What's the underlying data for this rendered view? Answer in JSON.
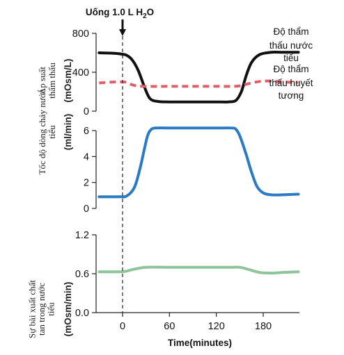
{
  "chart_data": {
    "annotation": {
      "prefix": "Uống 1.0 L H",
      "subscript": "2",
      "suffix": "O",
      "x": 0
    },
    "xlabel": "Time(minutes)",
    "xticks": [
      0,
      60,
      120,
      180
    ],
    "xlim": [
      -30,
      225
    ],
    "panels": [
      {
        "type": "line",
        "ylabel_unit": "(mOsm/L)",
        "ylabel": "Áp suất thẩm thấu",
        "ylim": [
          0,
          800
        ],
        "yticks": [
          0,
          400,
          800
        ],
        "series": [
          {
            "name": "Độ thẩm thấu nước tiểu",
            "label_lines": [
              "Độ thẩm",
              "thấu nước",
              "tiểu"
            ],
            "color": "#111111",
            "dashed": false,
            "x": [
              -30,
              -10,
              0,
              5,
              12,
              20,
              28,
              35,
              45,
              60,
              90,
              120,
              135,
              145,
              152,
              158,
              165,
              175,
              190,
              205,
              225
            ],
            "y": [
              600,
              595,
              585,
              575,
              530,
              420,
              250,
              130,
              100,
              95,
              95,
              95,
              95,
              110,
              200,
              360,
              500,
              580,
              605,
              605,
              605
            ]
          },
          {
            "name": "Độ thẩm thấu huyết tương",
            "label_lines": [
              "Độ thẩm",
              "thấu huyết",
              "tương"
            ],
            "color": "#e0606a",
            "dashed": true,
            "x": [
              -30,
              -10,
              0,
              5,
              15,
              30,
              60,
              90,
              120,
              140,
              150,
              160,
              175,
              190,
              205,
              225
            ],
            "y": [
              290,
              300,
              300,
              295,
              265,
              255,
              255,
              255,
              255,
              255,
              260,
              280,
              305,
              310,
              300,
              295
            ]
          }
        ]
      },
      {
        "type": "line",
        "ylabel_unit": "(ml/min)",
        "ylabel": "Tốc độ dòng chảy nước tiểu",
        "ylim": [
          0,
          6
        ],
        "yticks": [
          0,
          2,
          4,
          6
        ],
        "series": [
          {
            "name": "Tốc độ dòng chảy nước tiểu",
            "color": "#2b7bc4",
            "dashed": false,
            "x": [
              -30,
              -5,
              5,
              15,
              22,
              28,
              32,
              36,
              42,
              60,
              90,
              120,
              140,
              145,
              150,
              158,
              165,
              172,
              180,
              190,
              205,
              225
            ],
            "y": [
              0.9,
              0.9,
              0.95,
              1.6,
              3.0,
              4.6,
              5.6,
              6.05,
              6.2,
              6.2,
              6.2,
              6.2,
              6.2,
              6.1,
              5.6,
              4.2,
              2.8,
              1.7,
              1.2,
              1.05,
              1.05,
              1.1
            ]
          }
        ]
      },
      {
        "type": "line",
        "ylabel_unit": "(mOsm/min)",
        "ylabel": "Sự bài xuất chất tan trong nước tiểu",
        "ylim": [
          0,
          1.2
        ],
        "yticks": [
          0,
          0.6,
          1.2
        ],
        "series": [
          {
            "name": "Sự bài xuất chất tan trong nước tiểu",
            "color": "#8fc49a",
            "dashed": false,
            "x": [
              -30,
              -10,
              0,
              5,
              15,
              30,
              60,
              90,
              120,
              140,
              150,
              160,
              175,
              190,
              205,
              225
            ],
            "y": [
              0.63,
              0.63,
              0.63,
              0.64,
              0.67,
              0.7,
              0.7,
              0.7,
              0.7,
              0.7,
              0.7,
              0.67,
              0.62,
              0.61,
              0.62,
              0.63
            ]
          }
        ]
      }
    ]
  }
}
